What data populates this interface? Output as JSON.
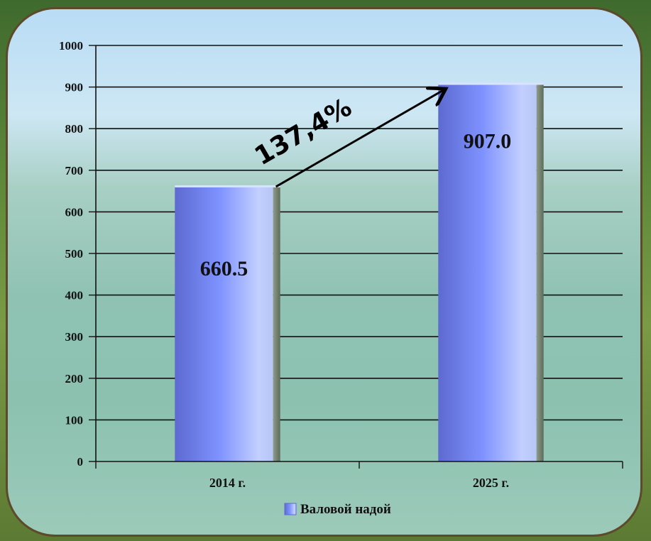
{
  "chart_data": {
    "type": "bar",
    "categories": [
      "2014 г.",
      "2025 г."
    ],
    "series": [
      {
        "name": "Валовой надой",
        "values": [
          660.5,
          907.0
        ]
      }
    ],
    "data_labels": [
      "660.5",
      "907.0"
    ],
    "y_ticks": [
      "0",
      "100",
      "200",
      "300",
      "400",
      "500",
      "600",
      "700",
      "800",
      "900",
      "1000"
    ],
    "ylim": [
      0,
      1000
    ],
    "grid": true,
    "legend": "bottom",
    "annotation": "137,4%",
    "colors": {
      "bar_dark": "#5e6fd8",
      "bar_light": "#c8d4ff",
      "bar_side": "#6a7a6a",
      "grid": "#111111"
    }
  }
}
